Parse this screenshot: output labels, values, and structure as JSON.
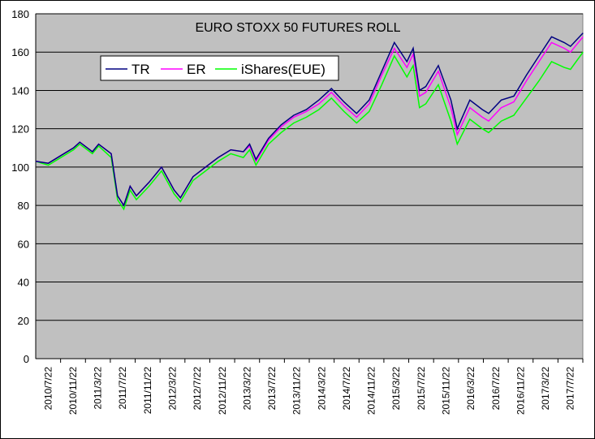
{
  "chart_data": {
    "type": "line",
    "title": "EURO STOXX 50 FUTURES ROLL",
    "xlabel": "",
    "ylabel": "",
    "ylim": [
      0,
      180
    ],
    "yticks": [
      0,
      20,
      40,
      60,
      80,
      100,
      120,
      140,
      160,
      180
    ],
    "xtick_labels": [
      "2010/7/22",
      "2010/11/22",
      "2011/3/22",
      "2011/7/22",
      "2011/11/22",
      "2012/3/22",
      "2012/7/22",
      "2012/11/22",
      "2013/3/22",
      "2013/7/22",
      "2013/11/22",
      "2014/3/22",
      "2014/7/22",
      "2014/11/22",
      "2015/3/22",
      "2015/7/22",
      "2015/11/22",
      "2016/3/22",
      "2016/7/22",
      "2016/11/22",
      "2017/3/22",
      "2017/7/22"
    ],
    "grid": "horizontal",
    "legend_position": "top-left",
    "background": "#c0c0c0",
    "x": [
      "2010-07",
      "2010-09",
      "2010-11",
      "2011-01",
      "2011-02",
      "2011-04",
      "2011-05",
      "2011-07",
      "2011-08",
      "2011-09",
      "2011-10",
      "2011-11",
      "2012-01",
      "2012-03",
      "2012-05",
      "2012-06",
      "2012-08",
      "2012-10",
      "2012-12",
      "2013-02",
      "2013-04",
      "2013-05",
      "2013-06",
      "2013-08",
      "2013-10",
      "2013-12",
      "2014-02",
      "2014-04",
      "2014-06",
      "2014-08",
      "2014-10",
      "2014-12",
      "2015-02",
      "2015-04",
      "2015-06",
      "2015-07",
      "2015-08",
      "2015-09",
      "2015-11",
      "2016-01",
      "2016-02",
      "2016-04",
      "2016-06",
      "2016-07",
      "2016-09",
      "2016-11",
      "2017-01",
      "2017-03",
      "2017-05",
      "2017-07",
      "2017-08",
      "2017-10"
    ],
    "series": [
      {
        "name": "iShares(EUE)",
        "color": "#00ff00",
        "values": [
          103,
          101,
          105,
          109,
          112,
          107,
          111,
          105,
          83,
          78,
          88,
          83,
          90,
          98,
          86,
          82,
          93,
          98,
          103,
          107,
          105,
          109,
          101,
          112,
          118,
          123,
          126,
          130,
          136,
          129,
          123,
          129,
          143,
          158,
          147,
          153,
          131,
          133,
          143,
          124,
          112,
          125,
          120,
          118,
          124,
          127,
          136,
          145,
          155,
          152,
          151,
          160
        ]
      },
      {
        "name": "ER",
        "color": "#ff00ff",
        "values": [
          103,
          102,
          106,
          110,
          113,
          108,
          112,
          107,
          85,
          80,
          90,
          85,
          92,
          100,
          88,
          84,
          95,
          100,
          105,
          109,
          108,
          111,
          103,
          114,
          121,
          126,
          129,
          133,
          139,
          132,
          126,
          133,
          148,
          162,
          152,
          159,
          137,
          139,
          150,
          131,
          117,
          131,
          126,
          124,
          131,
          134,
          145,
          155,
          165,
          162,
          160,
          168
        ]
      },
      {
        "name": "TR",
        "color": "#000080",
        "values": [
          103,
          102,
          106,
          110,
          113,
          108,
          112,
          107,
          85,
          80,
          90,
          85,
          92,
          100,
          88,
          84,
          95,
          100,
          105,
          109,
          108,
          112,
          104,
          115,
          122,
          127,
          130,
          135,
          141,
          134,
          128,
          135,
          150,
          165,
          155,
          162,
          140,
          142,
          153,
          135,
          120,
          135,
          130,
          128,
          135,
          137,
          148,
          158,
          168,
          165,
          163,
          170
        ]
      }
    ]
  }
}
